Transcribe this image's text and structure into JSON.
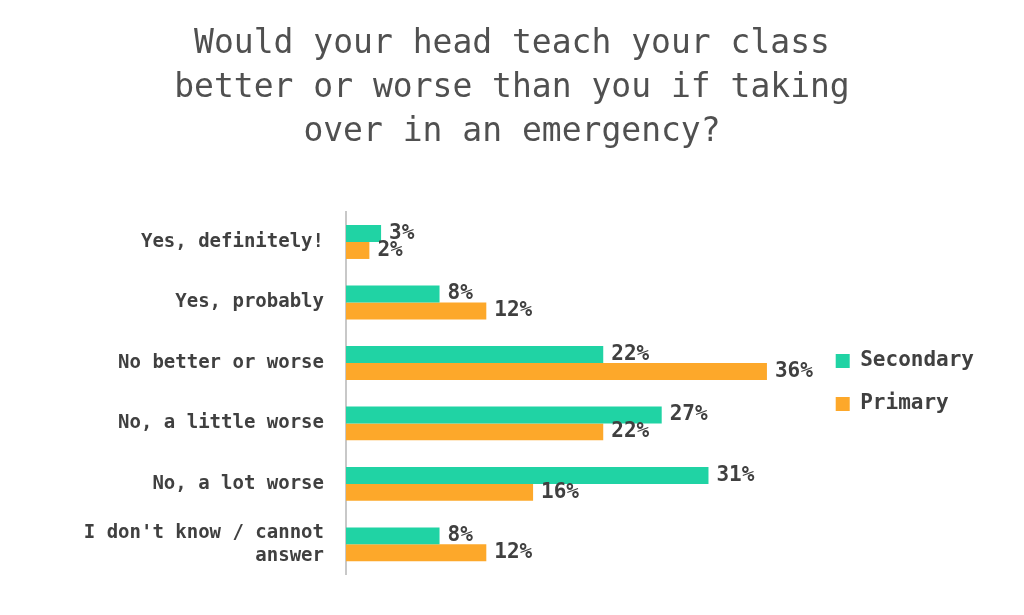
{
  "chart_data": {
    "type": "bar",
    "orientation": "horizontal",
    "title": "Would your head teach your class better or worse than you if taking over in an emergency?",
    "categories": [
      "Yes, definitely!",
      "Yes, probably",
      "No better or worse",
      "No, a little worse",
      "No, a lot worse",
      "I don't know / cannot answer"
    ],
    "series": [
      {
        "name": "Secondary",
        "color": "#20d3a4",
        "values": [
          3,
          8,
          22,
          27,
          31,
          8
        ],
        "value_labels": [
          "3%",
          "8%",
          "22%",
          "27%",
          "31%",
          "8%"
        ]
      },
      {
        "name": "Primary",
        "color": "#fda82a",
        "values": [
          2,
          12,
          36,
          22,
          16,
          12
        ],
        "value_labels": [
          "2%",
          "12%",
          "36%",
          "22%",
          "16%",
          "12%"
        ]
      }
    ],
    "legend": "right"
  }
}
